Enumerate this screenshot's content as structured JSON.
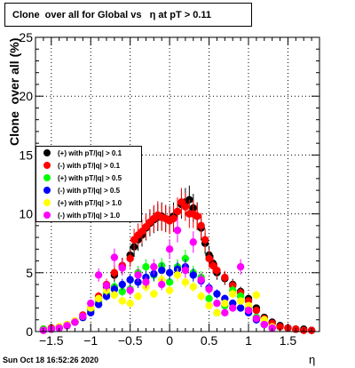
{
  "title": "Clone  over all for Global vs   η at pT > 0.11",
  "footer": {
    "timestamp": "Sun Oct 18 16:52:26 2020"
  },
  "chart_data": {
    "type": "scatter",
    "title": "Clone  over all for Global vs   η at pT > 0.11",
    "xlabel": "η",
    "ylabel": "Clone  over all (%)",
    "xlim": [
      -1.7,
      1.9
    ],
    "ylim": [
      0,
      25
    ],
    "x_ticks": [
      -1.5,
      -1,
      -0.5,
      0,
      0.5,
      1,
      1.5
    ],
    "x_tick_labels": [
      "−1.5",
      "−1",
      "−0.5",
      "0",
      "0.5",
      "1",
      "1.5"
    ],
    "y_ticks": [
      0,
      5,
      10,
      15,
      20,
      25
    ],
    "y_tick_labels": [
      "0",
      "5",
      "10",
      "15",
      "20",
      "25"
    ],
    "grid": true,
    "legend_position": "left",
    "series": [
      {
        "name": "(+) with pT/|q| > 0.1",
        "color": "#000000",
        "x": [
          -1.6,
          -1.5,
          -1.4,
          -1.3,
          -1.2,
          -1.1,
          -1.0,
          -0.9,
          -0.8,
          -0.7,
          -0.6,
          -0.5,
          -0.45,
          -0.4,
          -0.35,
          -0.3,
          -0.25,
          -0.2,
          -0.15,
          -0.1,
          -0.05,
          0.0,
          0.05,
          0.1,
          0.15,
          0.2,
          0.25,
          0.3,
          0.35,
          0.4,
          0.45,
          0.5,
          0.55,
          0.6,
          0.7,
          0.8,
          0.9,
          1.0,
          1.1,
          1.2,
          1.3,
          1.4,
          1.5,
          1.6,
          1.7,
          1.8
        ],
        "y": [
          0.2,
          0.2,
          0.3,
          0.5,
          0.8,
          1.2,
          1.8,
          2.8,
          3.8,
          4.8,
          5.6,
          6.5,
          7.2,
          7.8,
          8.2,
          8.8,
          9.2,
          9.5,
          9.7,
          9.8,
          9.6,
          9.5,
          9.8,
          10.2,
          10.8,
          11.0,
          11.2,
          10.5,
          9.8,
          8.8,
          7.5,
          6.5,
          5.8,
          5.0,
          4.5,
          4.0,
          3.4,
          2.8,
          2.0,
          1.2,
          0.8,
          0.5,
          0.3,
          0.2,
          0.2,
          0.1
        ]
      },
      {
        "name": "(-) with pT/|q| > 0.1",
        "color": "#ff0000",
        "x": [
          -1.6,
          -1.5,
          -1.4,
          -1.3,
          -1.2,
          -1.1,
          -1.0,
          -0.9,
          -0.8,
          -0.7,
          -0.6,
          -0.5,
          -0.45,
          -0.4,
          -0.35,
          -0.3,
          -0.25,
          -0.2,
          -0.15,
          -0.1,
          -0.05,
          0.0,
          0.05,
          0.1,
          0.15,
          0.2,
          0.25,
          0.3,
          0.35,
          0.4,
          0.45,
          0.5,
          0.55,
          0.6,
          0.7,
          0.8,
          0.9,
          1.0,
          1.1,
          1.2,
          1.3,
          1.4,
          1.5,
          1.6,
          1.7,
          1.8
        ],
        "y": [
          0.2,
          0.3,
          0.4,
          0.6,
          0.9,
          1.4,
          2.0,
          3.0,
          4.0,
          5.0,
          5.6,
          6.2,
          7.8,
          8.2,
          8.5,
          8.9,
          9.3,
          9.6,
          9.9,
          9.7,
          9.6,
          9.4,
          9.6,
          10.2,
          11.0,
          10.6,
          10.0,
          10.0,
          9.8,
          9.0,
          7.8,
          6.2,
          5.6,
          5.2,
          4.6,
          3.9,
          3.3,
          2.6,
          1.8,
          1.1,
          0.7,
          0.4,
          0.3,
          0.2,
          0.1,
          0.1
        ]
      },
      {
        "name": "(+) with pT/|q| > 0.5",
        "color": "#00ff00",
        "x": [
          -1.6,
          -1.5,
          -1.4,
          -1.3,
          -1.2,
          -1.1,
          -1.0,
          -0.9,
          -0.8,
          -0.7,
          -0.6,
          -0.5,
          -0.4,
          -0.3,
          -0.2,
          -0.1,
          0.0,
          0.1,
          0.2,
          0.3,
          0.4,
          0.5,
          0.6,
          0.7,
          0.8,
          0.9,
          1.0,
          1.1,
          1.2,
          1.3
        ],
        "y": [
          0.2,
          0.2,
          0.4,
          0.6,
          0.8,
          1.2,
          1.8,
          2.5,
          3.2,
          3.8,
          3.4,
          3.6,
          5.0,
          5.5,
          4.8,
          5.6,
          4.2,
          5.5,
          6.2,
          5.0,
          4.6,
          2.8,
          1.6,
          2.2,
          3.5,
          3.0,
          2.0,
          1.2,
          0.6,
          0.3
        ]
      },
      {
        "name": "(-) with pT/|q| > 0.5",
        "color": "#0000ff",
        "x": [
          -1.6,
          -1.5,
          -1.4,
          -1.3,
          -1.2,
          -1.1,
          -1.0,
          -0.9,
          -0.8,
          -0.7,
          -0.6,
          -0.5,
          -0.4,
          -0.3,
          -0.2,
          -0.1,
          0.0,
          0.1,
          0.2,
          0.3,
          0.4,
          0.5,
          0.6,
          0.7,
          0.8,
          0.9,
          1.0,
          1.1,
          1.2,
          1.3
        ],
        "y": [
          0.1,
          0.2,
          0.3,
          0.5,
          0.8,
          1.2,
          1.6,
          2.3,
          3.0,
          3.6,
          4.0,
          4.4,
          4.2,
          4.6,
          4.9,
          5.2,
          5.0,
          5.3,
          5.5,
          4.8,
          4.3,
          3.7,
          3.2,
          2.8,
          2.4,
          2.0,
          1.6,
          1.0,
          0.6,
          0.3
        ]
      },
      {
        "name": "(+) with pT/|q| > 1.0",
        "color": "#ffff00",
        "x": [
          -1.6,
          -1.5,
          -1.4,
          -1.3,
          -1.2,
          -1.1,
          -1.0,
          -0.9,
          -0.8,
          -0.7,
          -0.6,
          -0.5,
          -0.4,
          -0.3,
          -0.2,
          -0.1,
          0.0,
          0.1,
          0.2,
          0.3,
          0.4,
          0.5,
          0.6,
          0.7,
          0.8,
          0.9,
          1.0,
          1.1,
          1.2,
          1.3
        ],
        "y": [
          0.1,
          0.2,
          0.4,
          0.6,
          0.9,
          1.3,
          2.0,
          2.8,
          3.5,
          3.1,
          2.6,
          2.4,
          3.0,
          3.8,
          3.2,
          4.4,
          3.5,
          4.8,
          4.2,
          3.8,
          3.0,
          2.2,
          1.6,
          2.4,
          3.2,
          2.6,
          2.2,
          3.1,
          1.0,
          0.4
        ]
      },
      {
        "name": "(-) with pT/|q| > 1.0",
        "color": "#ff00ff",
        "x": [
          -1.6,
          -1.5,
          -1.4,
          -1.3,
          -1.2,
          -1.1,
          -1.0,
          -0.9,
          -0.8,
          -0.7,
          -0.6,
          -0.5,
          -0.4,
          -0.3,
          -0.2,
          -0.1,
          0.0,
          0.1,
          0.2,
          0.3,
          0.4,
          0.5,
          0.6,
          0.7,
          0.8,
          0.9,
          1.0,
          1.1,
          1.2,
          1.3
        ],
        "y": [
          0.1,
          0.2,
          0.3,
          0.5,
          0.8,
          1.3,
          2.4,
          4.8,
          3.9,
          6.3,
          5.4,
          3.5,
          4.8,
          4.2,
          5.5,
          4.0,
          7.0,
          8.6,
          5.2,
          7.6,
          4.4,
          3.6,
          2.4,
          1.6,
          2.0,
          5.5,
          1.8,
          1.1,
          0.6,
          0.3
        ]
      }
    ]
  }
}
